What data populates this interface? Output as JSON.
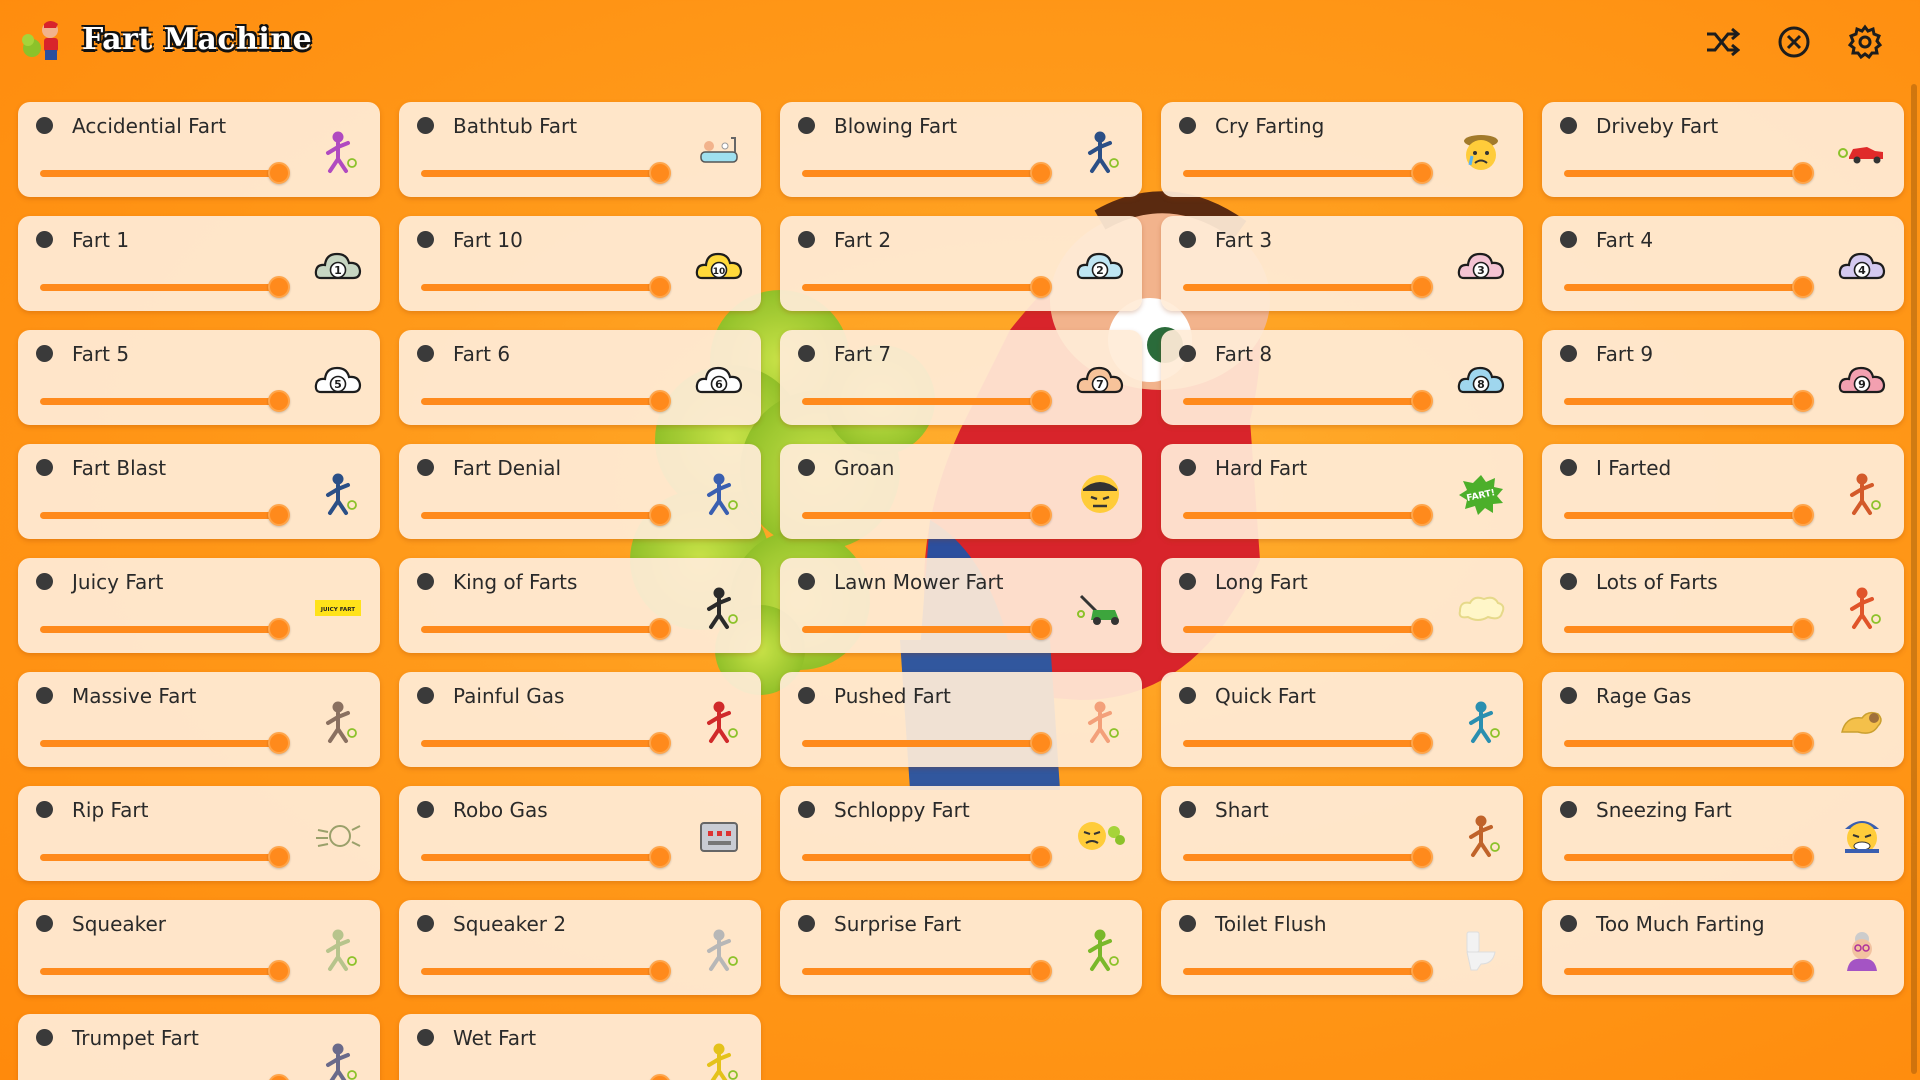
{
  "app": {
    "title": "Fart Machine",
    "icons": {
      "logo": "fart-character-logo-icon",
      "shuffle": "shuffle-icon",
      "stop": "stop-circle-icon",
      "settings": "gear-icon"
    }
  },
  "colors": {
    "accent": "#ff8a1c",
    "card": "#ffecd7",
    "background": "#ff9a1a"
  },
  "sounds": [
    {
      "label": "Accidential Fart",
      "icon": "person-bending-icon",
      "volume": 1.0
    },
    {
      "label": "Bathtub Fart",
      "icon": "bathtub-icon",
      "volume": 1.0
    },
    {
      "label": "Blowing Fart",
      "icon": "person-blowing-icon",
      "volume": 1.0
    },
    {
      "label": "Cry Farting",
      "icon": "crying-face-icon",
      "volume": 1.0
    },
    {
      "label": "Driveby Fart",
      "icon": "red-car-icon",
      "volume": 1.0
    },
    {
      "label": "Fart 1",
      "icon": "cloud-1-icon",
      "badge": "1",
      "volume": 1.0
    },
    {
      "label": "Fart 10",
      "icon": "cloud-10-icon",
      "badge": "10",
      "volume": 1.0
    },
    {
      "label": "Fart 2",
      "icon": "cloud-2-icon",
      "badge": "2",
      "volume": 1.0
    },
    {
      "label": "Fart 3",
      "icon": "cloud-3-icon",
      "badge": "3",
      "volume": 1.0
    },
    {
      "label": "Fart 4",
      "icon": "cloud-4-icon",
      "badge": "4",
      "volume": 1.0
    },
    {
      "label": "Fart 5",
      "icon": "cloud-5-icon",
      "badge": "5",
      "volume": 1.0
    },
    {
      "label": "Fart 6",
      "icon": "cloud-6-icon",
      "badge": "6",
      "volume": 1.0
    },
    {
      "label": "Fart 7",
      "icon": "cloud-7-icon",
      "badge": "7",
      "volume": 1.0
    },
    {
      "label": "Fart 8",
      "icon": "cloud-8-icon",
      "badge": "8",
      "volume": 1.0
    },
    {
      "label": "Fart 9",
      "icon": "cloud-9-icon",
      "badge": "9",
      "volume": 1.0
    },
    {
      "label": "Fart Blast",
      "icon": "person-blast-icon",
      "volume": 1.0
    },
    {
      "label": "Fart Denial",
      "icon": "person-shrug-icon",
      "volume": 1.0
    },
    {
      "label": "Groan",
      "icon": "groaning-face-icon",
      "volume": 1.0
    },
    {
      "label": "Hard Fart",
      "icon": "fart-burst-icon",
      "badge": "FART!",
      "volume": 1.0
    },
    {
      "label": "I Farted",
      "icon": "person-arms-up-icon",
      "volume": 1.0
    },
    {
      "label": "Juicy Fart",
      "icon": "juicy-fart-sign-icon",
      "badge": "JUICY FART",
      "volume": 1.0
    },
    {
      "label": "King of Farts",
      "icon": "king-silhouette-icon",
      "volume": 1.0
    },
    {
      "label": "Lawn Mower Fart",
      "icon": "lawn-mower-icon",
      "volume": 1.0
    },
    {
      "label": "Long Fart",
      "icon": "long-gas-cloud-icon",
      "volume": 1.0
    },
    {
      "label": "Lots of Farts",
      "icon": "person-running-gas-icon",
      "volume": 1.0
    },
    {
      "label": "Massive Fart",
      "icon": "big-cloud-person-icon",
      "volume": 1.0
    },
    {
      "label": "Painful Gas",
      "icon": "person-lying-icon",
      "volume": 1.0
    },
    {
      "label": "Pushed Fart",
      "icon": "person-pushing-icon",
      "volume": 1.0
    },
    {
      "label": "Quick Fart",
      "icon": "person-dashing-icon",
      "volume": 1.0
    },
    {
      "label": "Rage Gas",
      "icon": "rage-blast-icon",
      "volume": 1.0
    },
    {
      "label": "Rip Fart",
      "icon": "rip-burst-icon",
      "volume": 1.0
    },
    {
      "label": "Robo Gas",
      "icon": "robot-box-icon",
      "volume": 1.0
    },
    {
      "label": "Schloppy Fart",
      "icon": "sloppy-face-icon",
      "volume": 1.0
    },
    {
      "label": "Shart",
      "icon": "person-standing-icon",
      "volume": 1.0
    },
    {
      "label": "Sneezing Fart",
      "icon": "sneezing-face-icon",
      "volume": 1.0
    },
    {
      "label": "Squeaker",
      "icon": "squeak-hand-icon",
      "volume": 1.0
    },
    {
      "label": "Squeaker 2",
      "icon": "squeak-hand-2-icon",
      "volume": 1.0
    },
    {
      "label": "Surprise Fart",
      "icon": "person-surprise-icon",
      "volume": 1.0
    },
    {
      "label": "Toilet Flush",
      "icon": "toilet-icon",
      "volume": 1.0
    },
    {
      "label": "Too Much Farting",
      "icon": "grandma-icon",
      "volume": 1.0
    },
    {
      "label": "Trumpet Fart",
      "icon": "person-trumpet-icon",
      "volume": 1.0
    },
    {
      "label": "Wet Fart",
      "icon": "person-wet-icon",
      "volume": 1.0
    }
  ]
}
